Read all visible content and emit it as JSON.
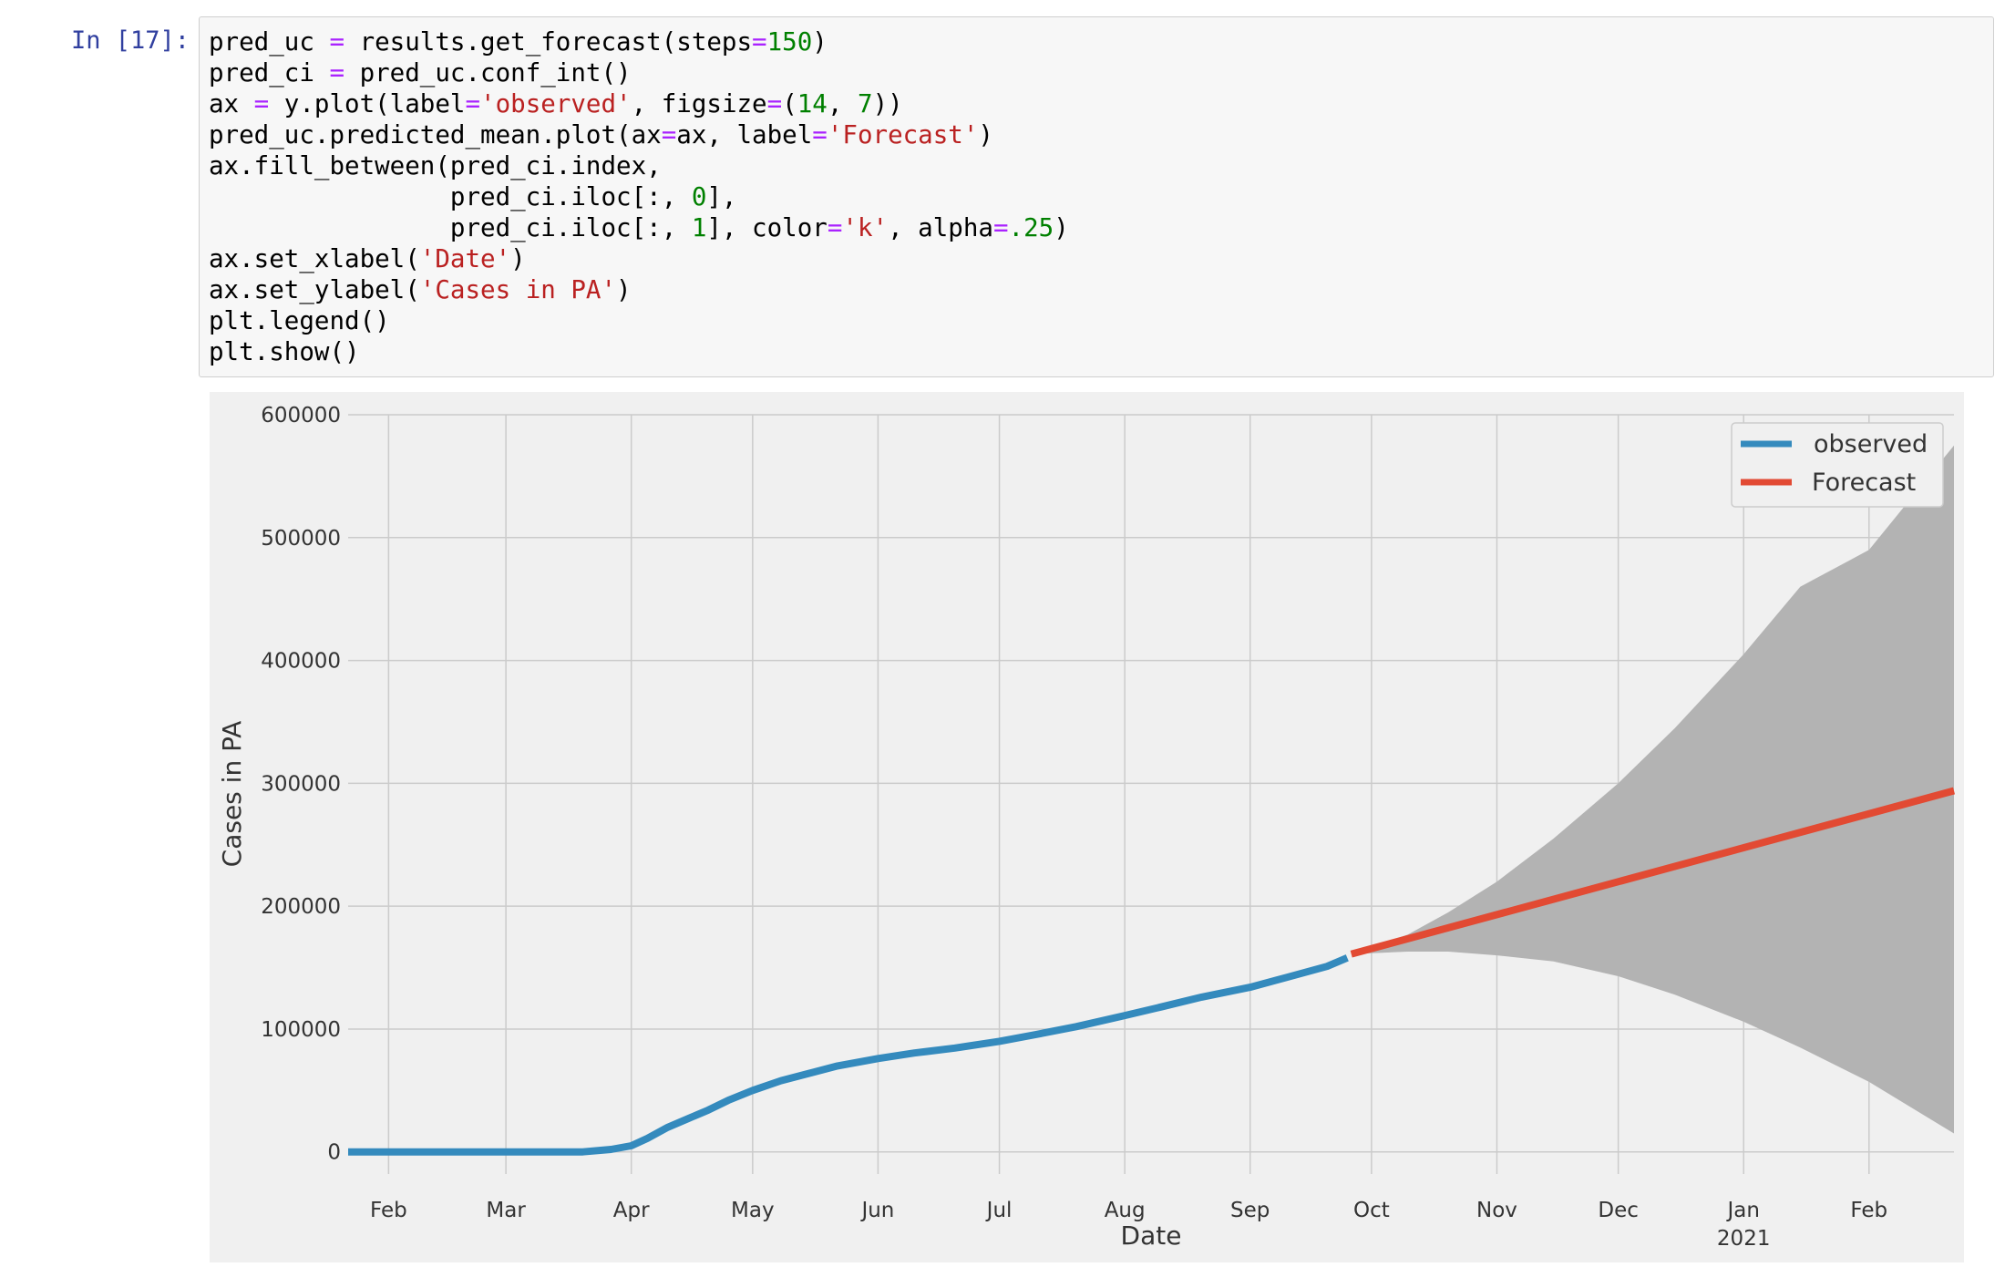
{
  "cell": {
    "prompt": "In [17]:",
    "code_lines": [
      [
        {
          "t": "pred_uc "
        },
        {
          "t": "=",
          "c": "op"
        },
        {
          "t": " results.get_forecast(steps"
        },
        {
          "t": "=",
          "c": "op"
        },
        {
          "t": "150",
          "c": "num"
        },
        {
          "t": ")"
        }
      ],
      [
        {
          "t": "pred_ci "
        },
        {
          "t": "=",
          "c": "op"
        },
        {
          "t": " pred_uc.conf_int()"
        }
      ],
      [
        {
          "t": "ax "
        },
        {
          "t": "=",
          "c": "op"
        },
        {
          "t": " y.plot(label"
        },
        {
          "t": "=",
          "c": "op"
        },
        {
          "t": "'observed'",
          "c": "str"
        },
        {
          "t": ", figsize"
        },
        {
          "t": "=",
          "c": "op"
        },
        {
          "t": "("
        },
        {
          "t": "14",
          "c": "num"
        },
        {
          "t": ", "
        },
        {
          "t": "7",
          "c": "num"
        },
        {
          "t": "))"
        }
      ],
      [
        {
          "t": "pred_uc.predicted_mean.plot(ax"
        },
        {
          "t": "=",
          "c": "op"
        },
        {
          "t": "ax, label"
        },
        {
          "t": "=",
          "c": "op"
        },
        {
          "t": "'Forecast'",
          "c": "str"
        },
        {
          "t": ")"
        }
      ],
      [
        {
          "t": "ax.fill_between(pred_ci.index,"
        }
      ],
      [
        {
          "t": "                pred_ci.iloc[:, "
        },
        {
          "t": "0",
          "c": "num"
        },
        {
          "t": "],"
        }
      ],
      [
        {
          "t": "                pred_ci.iloc[:, "
        },
        {
          "t": "1",
          "c": "num"
        },
        {
          "t": "], color"
        },
        {
          "t": "=",
          "c": "op"
        },
        {
          "t": "'k'",
          "c": "str"
        },
        {
          "t": ", alpha"
        },
        {
          "t": "=",
          "c": "op"
        },
        {
          "t": ".25",
          "c": "num"
        },
        {
          "t": ")"
        }
      ],
      [
        {
          "t": "ax.set_xlabel("
        },
        {
          "t": "'Date'",
          "c": "str"
        },
        {
          "t": ")"
        }
      ],
      [
        {
          "t": "ax.set_ylabel("
        },
        {
          "t": "'Cases in PA'",
          "c": "str"
        },
        {
          "t": ")"
        }
      ],
      [
        {
          "t": "plt.legend()"
        }
      ],
      [
        {
          "t": "plt.show()"
        }
      ]
    ]
  },
  "colors": {
    "observed": "#348ABD",
    "forecast": "#E24A33",
    "band": "#b3b3b3",
    "axes_bg": "#f0f0f0",
    "grid": "#cbcbcb"
  },
  "chart_data": {
    "type": "line",
    "xlabel": "Date",
    "ylabel": "Cases in PA",
    "ylim": [
      -18000,
      600000
    ],
    "xlim": [
      "2020-01-22",
      "2021-02-22"
    ],
    "yticks": [
      0,
      100000,
      200000,
      300000,
      400000,
      500000,
      600000
    ],
    "ytick_labels": [
      "0",
      "100000",
      "200000",
      "300000",
      "400000",
      "500000",
      "600000"
    ],
    "xticks": [
      {
        "date": "2020-02-01",
        "label": "Feb",
        "sub": ""
      },
      {
        "date": "2020-03-01",
        "label": "Mar",
        "sub": ""
      },
      {
        "date": "2020-04-01",
        "label": "Apr",
        "sub": ""
      },
      {
        "date": "2020-05-01",
        "label": "May",
        "sub": ""
      },
      {
        "date": "2020-06-01",
        "label": "Jun",
        "sub": ""
      },
      {
        "date": "2020-07-01",
        "label": "Jul",
        "sub": ""
      },
      {
        "date": "2020-08-01",
        "label": "Aug",
        "sub": ""
      },
      {
        "date": "2020-09-01",
        "label": "Sep",
        "sub": ""
      },
      {
        "date": "2020-10-01",
        "label": "Oct",
        "sub": ""
      },
      {
        "date": "2020-11-01",
        "label": "Nov",
        "sub": ""
      },
      {
        "date": "2020-12-01",
        "label": "Dec",
        "sub": ""
      },
      {
        "date": "2021-01-01",
        "label": "Jan",
        "sub": "2021"
      },
      {
        "date": "2021-02-01",
        "label": "Feb",
        "sub": ""
      }
    ],
    "grid": true,
    "legend_position": "top-right",
    "series": [
      {
        "name": "observed",
        "x": [
          "2020-01-22",
          "2020-03-01",
          "2020-03-20",
          "2020-03-27",
          "2020-04-01",
          "2020-04-05",
          "2020-04-10",
          "2020-04-15",
          "2020-04-20",
          "2020-04-25",
          "2020-05-01",
          "2020-05-08",
          "2020-05-15",
          "2020-05-22",
          "2020-06-01",
          "2020-06-10",
          "2020-06-20",
          "2020-07-01",
          "2020-07-10",
          "2020-07-20",
          "2020-08-01",
          "2020-08-10",
          "2020-08-20",
          "2020-09-01",
          "2020-09-10",
          "2020-09-20",
          "2020-09-25"
        ],
        "y": [
          0,
          0,
          0,
          2000,
          5000,
          11000,
          20000,
          27000,
          34000,
          42000,
          50000,
          58000,
          64000,
          70000,
          76000,
          80500,
          84500,
          90000,
          95500,
          102000,
          111000,
          118000,
          126000,
          134000,
          142000,
          151000,
          158000
        ]
      },
      {
        "name": "Forecast",
        "x": [
          "2020-09-26",
          "2021-02-22"
        ],
        "y": [
          161000,
          294000
        ]
      }
    ],
    "confidence_band": {
      "x": [
        "2020-09-26",
        "2020-10-10",
        "2020-10-20",
        "2020-11-01",
        "2020-11-15",
        "2020-12-01",
        "2020-12-15",
        "2021-01-01",
        "2021-01-15",
        "2021-02-01",
        "2021-02-22"
      ],
      "lower": [
        161000,
        163000,
        163000,
        160000,
        155000,
        143000,
        128000,
        106000,
        85000,
        57000,
        15000
      ],
      "upper": [
        161000,
        177000,
        195000,
        220000,
        255000,
        300000,
        345000,
        405000,
        460000,
        490000,
        575000
      ]
    }
  }
}
